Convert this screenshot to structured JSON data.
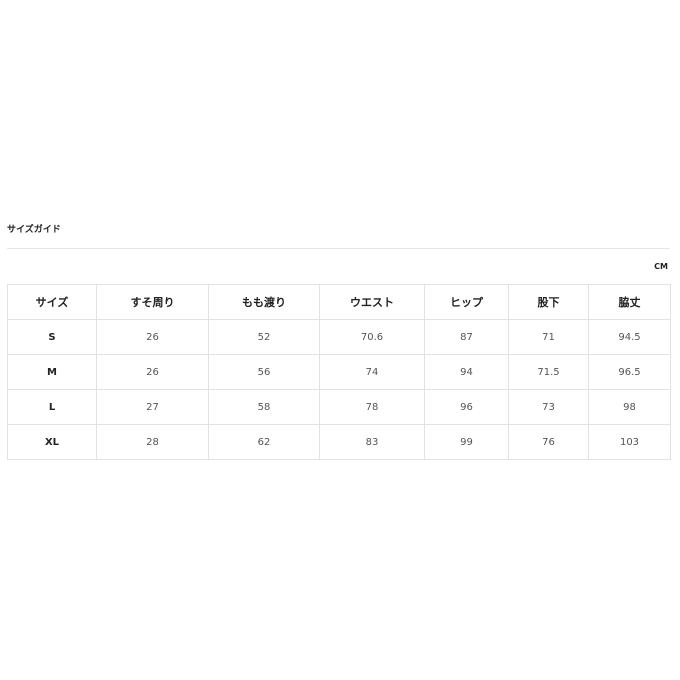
{
  "title": "サイズガイド",
  "unit": "CM",
  "table": {
    "headers": [
      "サイズ",
      "すそ周り",
      "もも渡り",
      "ウエスト",
      "ヒップ",
      "股下",
      "脇丈"
    ],
    "rows": [
      [
        "S",
        "26",
        "52",
        "70.6",
        "87",
        "71",
        "94.5"
      ],
      [
        "M",
        "26",
        "56",
        "74",
        "94",
        "71.5",
        "96.5"
      ],
      [
        "L",
        "27",
        "58",
        "78",
        "96",
        "73",
        "98"
      ],
      [
        "XL",
        "28",
        "62",
        "83",
        "99",
        "76",
        "103"
      ]
    ]
  }
}
